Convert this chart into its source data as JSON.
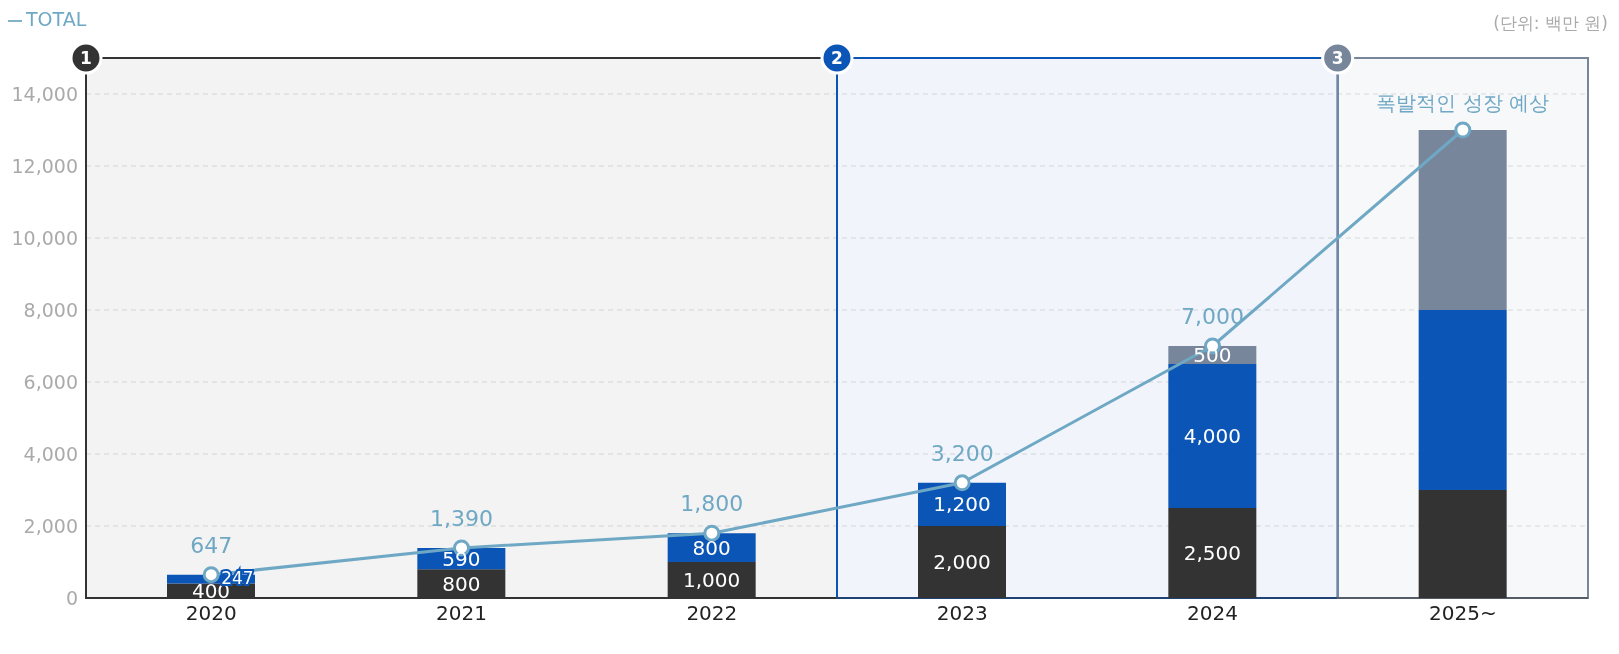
{
  "chart_data": {
    "type": "bar",
    "stacked": true,
    "categories": [
      "2020",
      "2021",
      "2022",
      "2023",
      "2024",
      "2025~"
    ],
    "series": [
      {
        "color": "#333333",
        "values": [
          400,
          800,
          1000,
          2000,
          2500,
          3000
        ],
        "value_labels": [
          "400",
          "800",
          "1,000",
          "2,000",
          "2,500",
          null
        ]
      },
      {
        "color": "#0a55b5",
        "values": [
          247,
          590,
          800,
          1200,
          4000,
          5000
        ],
        "value_labels": [
          "247",
          "590",
          "800",
          "1,200",
          "4,000",
          null
        ]
      },
      {
        "color": "#77869b",
        "values": [
          0,
          0,
          0,
          0,
          500,
          5000
        ],
        "value_labels": [
          null,
          null,
          null,
          null,
          "500",
          null
        ]
      },
      {
        "name": "TOTAL",
        "type": "line",
        "color": "#6fa8c4",
        "values": [
          647,
          1390,
          1800,
          3200,
          7000,
          13000
        ],
        "value_labels": [
          "647",
          "1,390",
          "1,800",
          "3,200",
          "7,000",
          null
        ]
      }
    ],
    "ylim": [
      0,
      15000
    ],
    "yticks": [
      0,
      {
        "value": 2000,
        "label": "2,000"
      },
      {
        "value": 4000,
        "label": "4,000"
      },
      {
        "value": 6000,
        "label": "6,000"
      },
      {
        "value": 8000,
        "label": "8,000"
      },
      {
        "value": 10000,
        "label": "10,000"
      },
      {
        "value": 12000,
        "label": "12,000"
      },
      {
        "value": 14000,
        "label": "14,000"
      }
    ],
    "grid": "y",
    "legend": "top left",
    "marker": "circle",
    "line_style": "solid",
    "bands": [
      {
        "axis": "x",
        "from": "2020",
        "to": "2022",
        "label": "1",
        "color": "#333333"
      },
      {
        "axis": "x",
        "from": "2023",
        "to": "2024",
        "label": "2",
        "color": "#0a55b5"
      },
      {
        "axis": "x",
        "from": "2025~",
        "to": "2025~",
        "label": "3",
        "color": "#77869b"
      }
    ],
    "annotations": [
      {
        "text": "폭발적인 성장 예상",
        "x": "2025~",
        "y": 13000
      },
      "(단위: 백만 원)"
    ]
  }
}
